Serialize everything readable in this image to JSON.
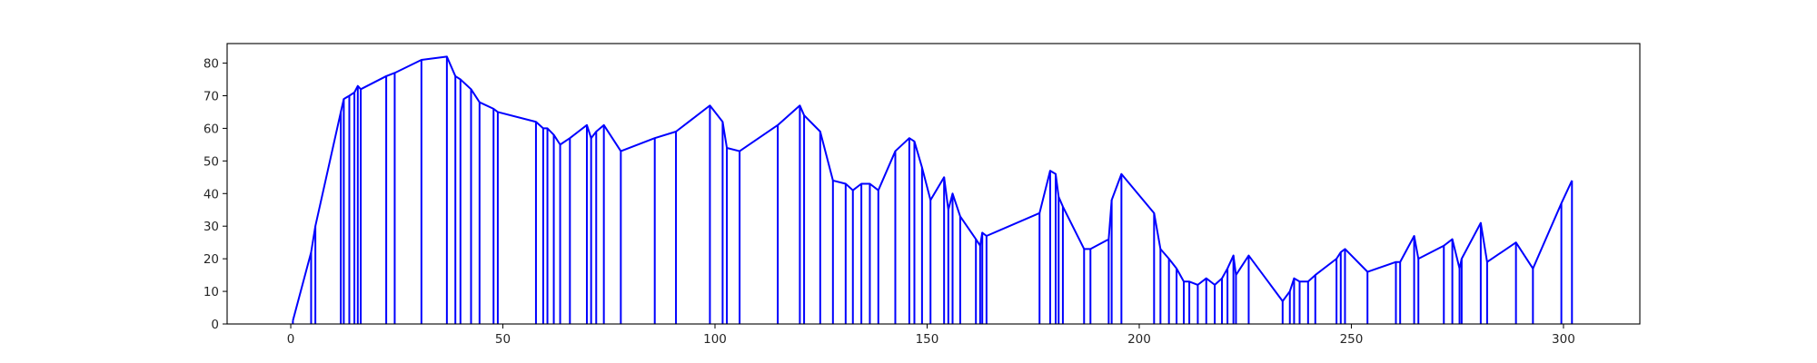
{
  "chart_data": {
    "type": "line",
    "title": "",
    "xlabel": "",
    "ylabel": "",
    "xlim": [
      -15,
      318
    ],
    "ylim": [
      0,
      86
    ],
    "grid": false,
    "legend": "none",
    "line_color": "#0000ff",
    "x_ticks": [
      0,
      50,
      100,
      150,
      200,
      250,
      300
    ],
    "y_ticks": [
      0,
      10,
      20,
      30,
      40,
      50,
      60,
      70,
      80
    ],
    "x_tick_labels": [
      "0",
      "50",
      "100",
      "150",
      "200",
      "250",
      "300"
    ],
    "y_tick_labels": [
      "0",
      "10",
      "20",
      "30",
      "40",
      "50",
      "60",
      "70",
      "80"
    ],
    "series": [
      {
        "style": "line with vertical drop lines to zero at each sample",
        "points": [
          [
            0.5,
            1
          ],
          [
            4.8,
            22
          ],
          [
            5.8,
            30
          ],
          [
            11.8,
            65
          ],
          [
            12.5,
            69
          ],
          [
            13.8,
            70
          ],
          [
            15,
            71
          ],
          [
            15.8,
            73
          ],
          [
            16.5,
            72
          ],
          [
            22.5,
            76
          ],
          [
            24.5,
            77
          ],
          [
            30.8,
            81
          ],
          [
            36.8,
            82
          ],
          [
            38.8,
            76
          ],
          [
            40,
            75
          ],
          [
            42.5,
            72
          ],
          [
            44.5,
            68
          ],
          [
            47.8,
            66
          ],
          [
            48.8,
            65
          ],
          [
            57.8,
            62
          ],
          [
            59.5,
            60
          ],
          [
            60.5,
            60
          ],
          [
            62,
            58
          ],
          [
            63.5,
            55
          ],
          [
            65.8,
            57
          ],
          [
            69.8,
            61
          ],
          [
            70.8,
            57
          ],
          [
            72,
            59
          ],
          [
            73.8,
            61
          ],
          [
            77.8,
            53
          ],
          [
            85.8,
            57
          ],
          [
            90.8,
            59
          ],
          [
            98.8,
            67
          ],
          [
            101.8,
            62
          ],
          [
            102.8,
            54
          ],
          [
            105.8,
            53
          ],
          [
            114.8,
            61
          ],
          [
            120,
            67
          ],
          [
            121,
            64
          ],
          [
            124.8,
            59
          ],
          [
            127.8,
            44
          ],
          [
            130.8,
            43
          ],
          [
            132.5,
            41
          ],
          [
            134.5,
            43
          ],
          [
            136.5,
            43
          ],
          [
            138.5,
            41
          ],
          [
            142.5,
            53
          ],
          [
            145.8,
            57
          ],
          [
            147,
            56
          ],
          [
            148.8,
            48
          ],
          [
            150.8,
            38
          ],
          [
            154,
            45
          ],
          [
            155,
            35
          ],
          [
            156,
            40
          ],
          [
            157.8,
            33
          ],
          [
            161.5,
            26
          ],
          [
            162.5,
            24
          ],
          [
            163,
            28
          ],
          [
            164,
            27
          ],
          [
            176.5,
            34
          ],
          [
            179,
            47
          ],
          [
            180.3,
            46
          ],
          [
            181,
            39
          ],
          [
            182,
            36
          ],
          [
            187,
            23
          ],
          [
            188.5,
            23
          ],
          [
            192.8,
            26
          ],
          [
            193.5,
            38
          ],
          [
            195.8,
            46
          ],
          [
            203.5,
            34
          ],
          [
            205,
            23
          ],
          [
            207,
            20
          ],
          [
            208.8,
            17
          ],
          [
            210.5,
            13
          ],
          [
            211.8,
            13
          ],
          [
            213.8,
            12
          ],
          [
            215.8,
            14
          ],
          [
            217.8,
            12
          ],
          [
            219.5,
            14
          ],
          [
            220.8,
            17
          ],
          [
            222.2,
            21
          ],
          [
            222.8,
            15
          ],
          [
            225.8,
            21
          ],
          [
            233.8,
            7
          ],
          [
            235.5,
            10
          ],
          [
            236.5,
            14
          ],
          [
            237.8,
            13
          ],
          [
            239.8,
            13
          ],
          [
            241.5,
            15
          ],
          [
            246.5,
            20
          ],
          [
            247.5,
            22
          ],
          [
            248.5,
            23
          ],
          [
            253.8,
            16
          ],
          [
            260.5,
            19
          ],
          [
            261.5,
            19
          ],
          [
            264.8,
            27
          ],
          [
            265.8,
            20
          ],
          [
            271.8,
            24
          ],
          [
            273.8,
            26
          ],
          [
            275.5,
            17
          ],
          [
            276,
            20
          ],
          [
            280.5,
            31
          ],
          [
            282,
            19
          ],
          [
            288.8,
            25
          ],
          [
            292.8,
            17
          ],
          [
            299.5,
            37
          ],
          [
            302,
            44
          ]
        ]
      }
    ]
  }
}
